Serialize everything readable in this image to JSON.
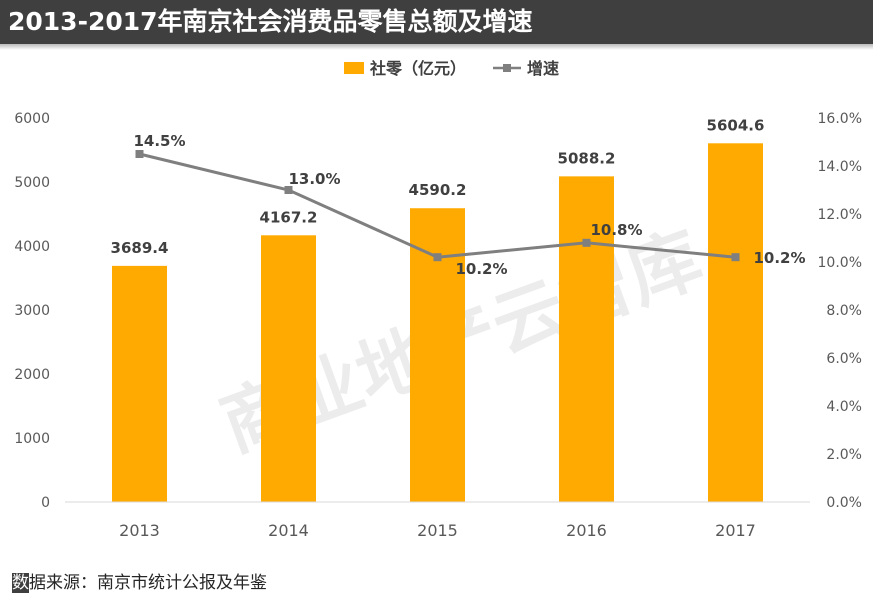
{
  "title": "2013-2017年南京社会消费品零售总额及增速",
  "watermark": "商业地产云智库",
  "source": {
    "highlight": "数",
    "rest": "据来源：南京市统计公报及年鉴"
  },
  "colors": {
    "bar": "#FFAA00",
    "line": "#7F7F7F",
    "title_bg": "#3F3F3F",
    "axis": "#D9D9D9"
  },
  "chart_data": {
    "type": "bar+line",
    "categories": [
      "2013",
      "2014",
      "2015",
      "2016",
      "2017"
    ],
    "series": [
      {
        "name": "社零（亿元）",
        "type": "bar",
        "axis": "left",
        "values": [
          3689.4,
          4167.2,
          4590.2,
          5088.2,
          5604.6
        ],
        "labels": [
          "3689.4",
          "4167.2",
          "4590.2",
          "5088.2",
          "5604.6"
        ]
      },
      {
        "name": "增速",
        "type": "line",
        "axis": "right",
        "values": [
          14.5,
          13.0,
          10.2,
          10.8,
          10.2
        ],
        "labels": [
          "14.5%",
          "13.0%",
          "10.2%",
          "10.8%",
          "10.2%"
        ]
      }
    ],
    "y_left": {
      "min": 0,
      "max": 6000,
      "ticks": [
        0,
        1000,
        2000,
        3000,
        4000,
        5000,
        6000
      ],
      "tick_labels": [
        "0",
        "1000",
        "2000",
        "3000",
        "4000",
        "5000",
        "6000"
      ]
    },
    "y_right": {
      "min": 0,
      "max": 16,
      "ticks": [
        0,
        2,
        4,
        6,
        8,
        10,
        12,
        14,
        16
      ],
      "tick_labels": [
        "0.0%",
        "2.0%",
        "4.0%",
        "6.0%",
        "8.0%",
        "10.0%",
        "12.0%",
        "14.0%",
        "16.0%"
      ]
    },
    "grid": false,
    "legend_position": "top-center"
  }
}
